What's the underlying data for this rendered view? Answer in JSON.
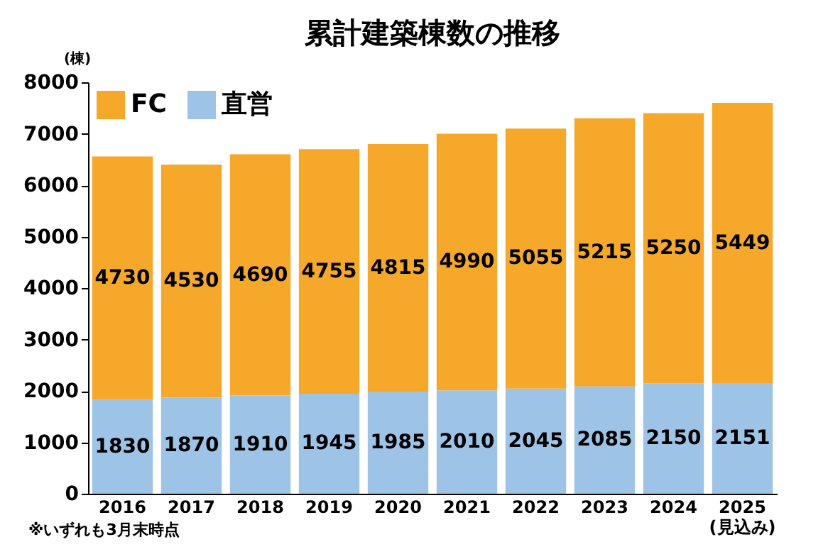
{
  "chart_data": {
    "type": "bar",
    "title": "累計建築棟数の推移",
    "ylabel": "(棟)",
    "annotations": [
      "※いずれも3月末時点"
    ],
    "categories": [
      "2016",
      "2017",
      "2018",
      "2019",
      "2020",
      "2021",
      "2022",
      "2023",
      "2024",
      "2025\n(見込み)"
    ],
    "stacked": true,
    "data_labels": true,
    "legend": "top left",
    "grid": false,
    "ylim": [
      0,
      8000
    ],
    "yticks": [
      0,
      1000,
      2000,
      3000,
      4000,
      5000,
      6000,
      7000,
      8000
    ],
    "series": [
      {
        "name": "直営",
        "color": "#9dc3e6",
        "values": [
          1830,
          1870,
          1910,
          1945,
          1985,
          2010,
          2045,
          2085,
          2150,
          2151
        ]
      },
      {
        "name": "FC",
        "color": "#f5a82a",
        "values": [
          4730,
          4530,
          4690,
          4755,
          4815,
          4990,
          5055,
          5215,
          5250,
          5449
        ]
      }
    ]
  }
}
